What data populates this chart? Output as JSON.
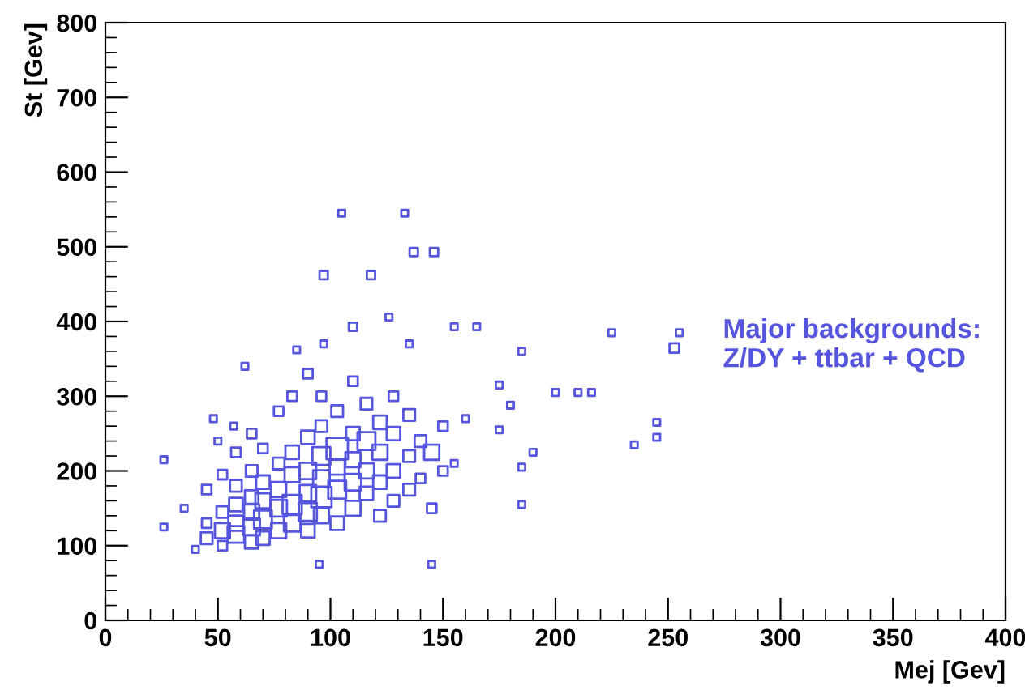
{
  "chart_data": {
    "type": "bubble",
    "xlabel": "Mej [Gev]",
    "ylabel": "St [Gev]",
    "xlim": [
      0,
      400
    ],
    "xticks": [
      0,
      50,
      100,
      150,
      200,
      250,
      300,
      350,
      400
    ],
    "ylim": [
      0,
      800
    ],
    "yticks": [
      0,
      100,
      200,
      300,
      400,
      500,
      600,
      700,
      800
    ],
    "grid": false,
    "legend": "right",
    "marker": "square",
    "series": [
      {
        "name": "Major backgrounds:\nZ/DY + ttbar + QCD",
        "color": "#5555dd",
        "x": [
          105,
          133,
          97,
          118,
          137,
          146,
          126,
          110,
          155,
          165,
          225,
          255,
          97,
          85,
          135,
          185,
          175,
          200,
          210,
          216,
          180,
          245,
          175,
          160,
          235,
          245,
          190,
          155,
          185,
          185,
          145,
          95,
          26,
          26,
          35,
          40,
          48,
          50,
          57,
          62,
          45,
          45,
          45,
          52,
          52,
          52,
          52,
          58,
          58,
          58,
          58,
          58,
          65,
          65,
          65,
          65,
          65,
          65,
          70,
          70,
          70,
          70,
          70,
          77,
          77,
          77,
          77,
          77,
          83,
          83,
          83,
          83,
          83,
          90,
          90,
          90,
          90,
          90,
          90,
          96,
          96,
          96,
          96,
          96,
          96,
          103,
          103,
          103,
          103,
          103,
          110,
          110,
          110,
          110,
          110,
          116,
          116,
          116,
          116,
          122,
          122,
          122,
          122,
          128,
          128,
          128,
          128,
          135,
          135,
          135,
          140,
          140,
          145,
          145,
          150,
          150
        ],
        "values": [
          545,
          545,
          462,
          462,
          493,
          493,
          406,
          393,
          393,
          393,
          385,
          385,
          370,
          362,
          370,
          360,
          315,
          305,
          305,
          305,
          288,
          265,
          255,
          270,
          235,
          245,
          225,
          210,
          205,
          155,
          75,
          75,
          215,
          125,
          150,
          95,
          270,
          240,
          260,
          340,
          110,
          130,
          175,
          100,
          120,
          145,
          195,
          115,
          130,
          155,
          180,
          225,
          105,
          125,
          145,
          165,
          200,
          250,
          110,
          135,
          160,
          185,
          230,
          120,
          150,
          175,
          210,
          280,
          130,
          155,
          195,
          225,
          300,
          120,
          145,
          170,
          200,
          245,
          330,
          140,
          165,
          190,
          220,
          260,
          300,
          130,
          175,
          205,
          230,
          280,
          150,
          185,
          215,
          250,
          320,
          170,
          200,
          240,
          290,
          140,
          185,
          225,
          265,
          160,
          200,
          250,
          300,
          175,
          220,
          275,
          190,
          240,
          150,
          225,
          200,
          260
        ],
        "sizes": [
          0.1,
          0.1,
          0.15,
          0.15,
          0.15,
          0.15,
          0.1,
          0.15,
          0.1,
          0.1,
          0.1,
          0.1,
          0.1,
          0.1,
          0.1,
          0.1,
          0.1,
          0.1,
          0.1,
          0.1,
          0.1,
          0.1,
          0.1,
          0.1,
          0.1,
          0.1,
          0.1,
          0.1,
          0.1,
          0.1,
          0.1,
          0.1,
          0.1,
          0.1,
          0.1,
          0.1,
          0.1,
          0.1,
          0.1,
          0.1,
          0.3,
          0.2,
          0.2,
          0.2,
          0.5,
          0.3,
          0.2,
          0.6,
          0.5,
          0.4,
          0.3,
          0.2,
          0.4,
          0.6,
          0.5,
          0.4,
          0.3,
          0.2,
          0.4,
          0.7,
          0.5,
          0.4,
          0.2,
          0.5,
          0.6,
          0.5,
          0.3,
          0.2,
          0.6,
          0.8,
          0.5,
          0.4,
          0.2,
          0.4,
          0.7,
          0.6,
          0.6,
          0.4,
          0.2,
          0.5,
          0.9,
          0.6,
          0.7,
          0.3,
          0.2,
          0.4,
          0.7,
          0.5,
          1.0,
          0.3,
          0.5,
          0.6,
          0.5,
          0.4,
          0.2,
          0.4,
          0.5,
          0.7,
          0.3,
          0.3,
          0.4,
          0.5,
          0.4,
          0.3,
          0.4,
          0.4,
          0.2,
          0.3,
          0.3,
          0.3,
          0.2,
          0.3,
          0.2,
          0.5,
          0.2,
          0.2
        ]
      }
    ]
  }
}
